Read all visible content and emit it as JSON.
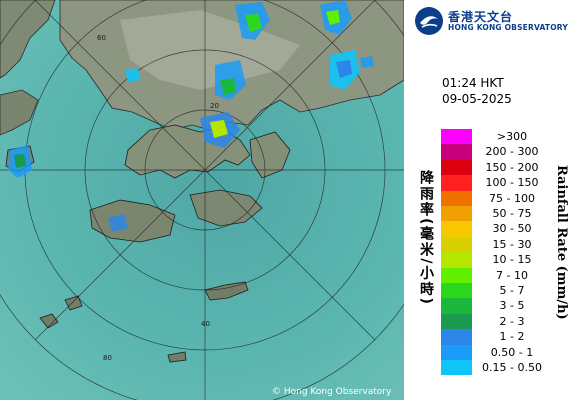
{
  "brand": {
    "name_zh": "香港天文台",
    "name_en": "HONG KONG OBSERVATORY"
  },
  "timestamp": {
    "time": "01:24 HKT",
    "date": "09-05-2025"
  },
  "legend": {
    "title_zh": "降雨率(毫米/小時)",
    "title_en": "Rainfall Rate (mm/h)",
    "bins": [
      {
        "label": ">300",
        "color": "#ff00ff"
      },
      {
        "label": "200 - 300",
        "color": "#c8007c"
      },
      {
        "label": "150 - 200",
        "color": "#dd0010"
      },
      {
        "label": "100 - 150",
        "color": "#ff2020"
      },
      {
        "label": "75 - 100",
        "color": "#f07000"
      },
      {
        "label": "50 - 75",
        "color": "#f0a000"
      },
      {
        "label": "30 - 50",
        "color": "#f8c800"
      },
      {
        "label": "15 - 30",
        "color": "#d8d000"
      },
      {
        "label": "10 - 15",
        "color": "#b4e600"
      },
      {
        "label": "7 - 10",
        "color": "#60f000"
      },
      {
        "label": "5 - 7",
        "color": "#2cd81e"
      },
      {
        "label": "3 - 5",
        "color": "#1cb83c"
      },
      {
        "label": "2 - 3",
        "color": "#189a50"
      },
      {
        "label": "1 - 2",
        "color": "#2c86e8"
      },
      {
        "label": "0.50 - 1",
        "color": "#1a9cf8"
      },
      {
        "label": "0.15 - 0.50",
        "color": "#10c4f8"
      }
    ]
  },
  "map": {
    "range_ring_labels": [
      "20",
      "40",
      "60",
      "80"
    ],
    "copyright": "© Hong Kong Observatory"
  },
  "colors": {
    "sea": "#5fb6b3",
    "land": "#7e8a72",
    "land_light": "#a8ae9c",
    "brand_blue": "#0b3f8c"
  }
}
